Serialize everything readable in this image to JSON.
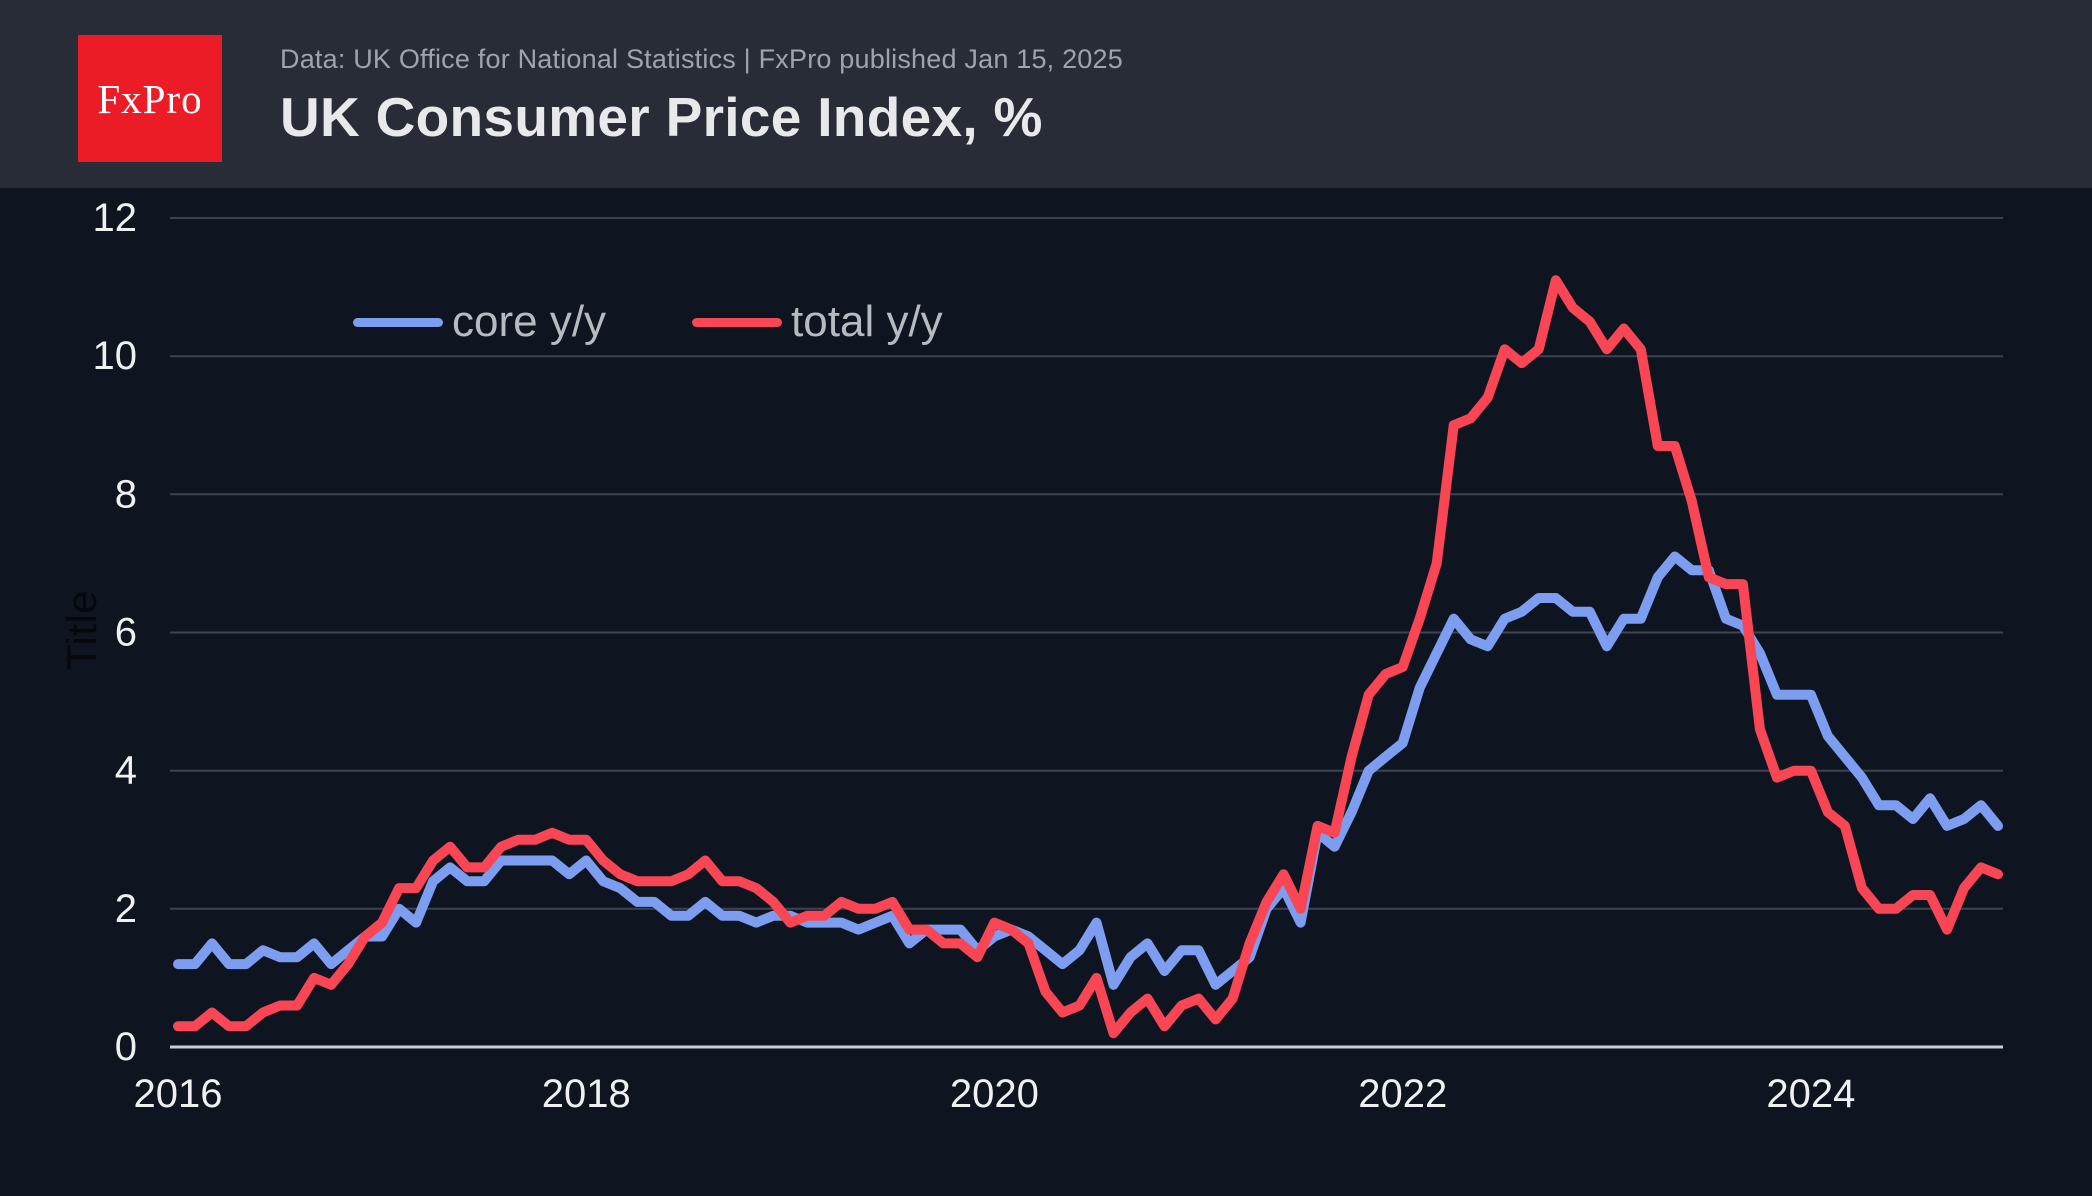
{
  "header": {
    "logo_text": "FxPro",
    "source_line": "Data: UK Office for National Statistics | FxPro published Jan 15, 2025",
    "title": "UK Consumer Price Index, %"
  },
  "chart_data": {
    "type": "line",
    "title": "UK Consumer Price Index, %",
    "xlabel": "",
    "ylabel": "Title",
    "ylim": [
      0,
      12
    ],
    "y_ticks": [
      0,
      2,
      4,
      6,
      8,
      10,
      12
    ],
    "x_tick_years": [
      "2016",
      "2018",
      "2020",
      "2022",
      "2024"
    ],
    "grid": "horizontal",
    "legend_position": "top-left-inside",
    "colors": {
      "background": "#0e1521",
      "header_band": "#282c37",
      "grid_line": "#3d4350",
      "zero_axis": "#c9ccd2",
      "core_line": "#7d9df0",
      "total_line": "#f84655",
      "logo_red": "#ec1c27"
    },
    "categories": [
      "2016-01",
      "2016-02",
      "2016-03",
      "2016-04",
      "2016-05",
      "2016-06",
      "2016-07",
      "2016-08",
      "2016-09",
      "2016-10",
      "2016-11",
      "2016-12",
      "2017-01",
      "2017-02",
      "2017-03",
      "2017-04",
      "2017-05",
      "2017-06",
      "2017-07",
      "2017-08",
      "2017-09",
      "2017-10",
      "2017-11",
      "2017-12",
      "2018-01",
      "2018-02",
      "2018-03",
      "2018-04",
      "2018-05",
      "2018-06",
      "2018-07",
      "2018-08",
      "2018-09",
      "2018-10",
      "2018-11",
      "2018-12",
      "2019-01",
      "2019-02",
      "2019-03",
      "2019-04",
      "2019-05",
      "2019-06",
      "2019-07",
      "2019-08",
      "2019-09",
      "2019-10",
      "2019-11",
      "2019-12",
      "2020-01",
      "2020-02",
      "2020-03",
      "2020-04",
      "2020-05",
      "2020-06",
      "2020-07",
      "2020-08",
      "2020-09",
      "2020-10",
      "2020-11",
      "2020-12",
      "2021-01",
      "2021-02",
      "2021-03",
      "2021-04",
      "2021-05",
      "2021-06",
      "2021-07",
      "2021-08",
      "2021-09",
      "2021-10",
      "2021-11",
      "2021-12",
      "2022-01",
      "2022-02",
      "2022-03",
      "2022-04",
      "2022-05",
      "2022-06",
      "2022-07",
      "2022-08",
      "2022-09",
      "2022-10",
      "2022-11",
      "2022-12",
      "2023-01",
      "2023-02",
      "2023-03",
      "2023-04",
      "2023-05",
      "2023-06",
      "2023-07",
      "2023-08",
      "2023-09",
      "2023-10",
      "2023-11",
      "2023-12",
      "2024-01",
      "2024-02",
      "2024-03",
      "2024-04",
      "2024-05",
      "2024-06",
      "2024-07",
      "2024-08",
      "2024-09",
      "2024-10",
      "2024-11",
      "2024-12"
    ],
    "series": [
      {
        "name": "core y/y",
        "color": "#7d9df0",
        "values": [
          1.2,
          1.2,
          1.5,
          1.2,
          1.2,
          1.4,
          1.3,
          1.3,
          1.5,
          1.2,
          1.4,
          1.6,
          1.6,
          2.0,
          1.8,
          2.4,
          2.6,
          2.4,
          2.4,
          2.7,
          2.7,
          2.7,
          2.7,
          2.5,
          2.7,
          2.4,
          2.3,
          2.1,
          2.1,
          1.9,
          1.9,
          2.1,
          1.9,
          1.9,
          1.8,
          1.9,
          1.9,
          1.8,
          1.8,
          1.8,
          1.7,
          1.8,
          1.9,
          1.5,
          1.7,
          1.7,
          1.7,
          1.4,
          1.6,
          1.7,
          1.6,
          1.4,
          1.2,
          1.4,
          1.8,
          0.9,
          1.3,
          1.5,
          1.1,
          1.4,
          1.4,
          0.9,
          1.1,
          1.3,
          2.0,
          2.3,
          1.8,
          3.1,
          2.9,
          3.4,
          4.0,
          4.2,
          4.4,
          5.2,
          5.7,
          6.2,
          5.9,
          5.8,
          6.2,
          6.3,
          6.5,
          6.5,
          6.3,
          6.3,
          5.8,
          6.2,
          6.2,
          6.8,
          7.1,
          6.9,
          6.9,
          6.2,
          6.1,
          5.7,
          5.1,
          5.1,
          5.1,
          4.5,
          4.2,
          3.9,
          3.5,
          3.5,
          3.3,
          3.6,
          3.2,
          3.3,
          3.5,
          3.2
        ]
      },
      {
        "name": "total y/y",
        "color": "#f84655",
        "values": [
          0.3,
          0.3,
          0.5,
          0.3,
          0.3,
          0.5,
          0.6,
          0.6,
          1.0,
          0.9,
          1.2,
          1.6,
          1.8,
          2.3,
          2.3,
          2.7,
          2.9,
          2.6,
          2.6,
          2.9,
          3.0,
          3.0,
          3.1,
          3.0,
          3.0,
          2.7,
          2.5,
          2.4,
          2.4,
          2.4,
          2.5,
          2.7,
          2.4,
          2.4,
          2.3,
          2.1,
          1.8,
          1.9,
          1.9,
          2.1,
          2.0,
          2.0,
          2.1,
          1.7,
          1.7,
          1.5,
          1.5,
          1.3,
          1.8,
          1.7,
          1.5,
          0.8,
          0.5,
          0.6,
          1.0,
          0.2,
          0.5,
          0.7,
          0.3,
          0.6,
          0.7,
          0.4,
          0.7,
          1.5,
          2.1,
          2.5,
          2.0,
          3.2,
          3.1,
          4.2,
          5.1,
          5.4,
          5.5,
          6.2,
          7.0,
          9.0,
          9.1,
          9.4,
          10.1,
          9.9,
          10.1,
          11.1,
          10.7,
          10.5,
          10.1,
          10.4,
          10.1,
          8.7,
          8.7,
          7.9,
          6.8,
          6.7,
          6.7,
          4.6,
          3.9,
          4.0,
          4.0,
          3.4,
          3.2,
          2.3,
          2.0,
          2.0,
          2.2,
          2.2,
          1.7,
          2.3,
          2.6,
          2.5
        ]
      }
    ]
  }
}
